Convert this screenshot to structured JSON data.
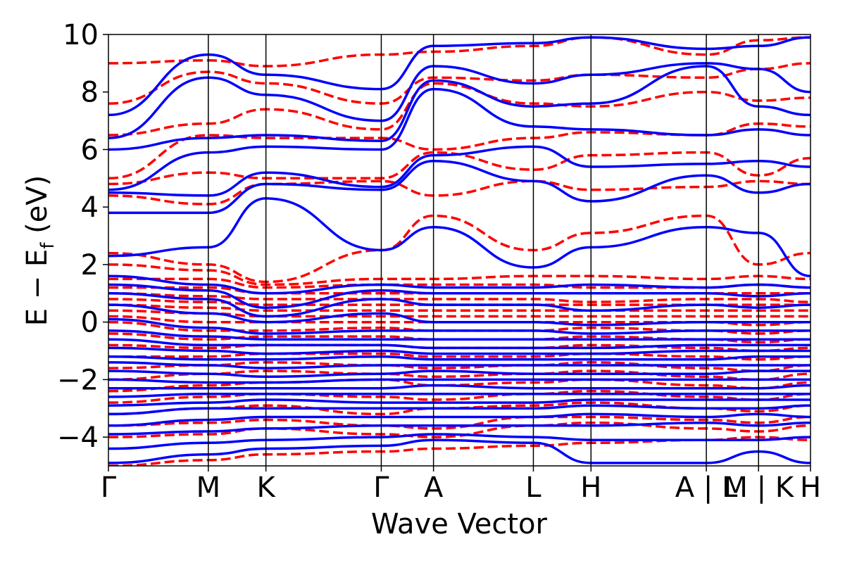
{
  "chart_data": {
    "type": "line",
    "title": "",
    "xlabel": "Wave Vector",
    "ylabel": "E − E_f (eV)",
    "ylabel_parts": {
      "main": "E − E",
      "sub": "f",
      "unit": " (eV)"
    },
    "ylim": [
      -5,
      10
    ],
    "yticks": [
      -4,
      -2,
      0,
      2,
      4,
      6,
      8,
      10
    ],
    "ytick_labels": [
      "−4",
      "−2",
      "0",
      "2",
      "4",
      "6",
      "8",
      "10"
    ],
    "k_path": {
      "labels": [
        "Γ",
        "M",
        "K",
        "Γ",
        "A",
        "L",
        "H",
        "A | L",
        "M | K",
        "H"
      ],
      "positions": [
        0,
        1.0,
        1.577,
        2.732,
        3.255,
        4.255,
        4.832,
        5.987,
        6.51,
        7.03
      ]
    },
    "grid": false,
    "legend": null,
    "series": [
      {
        "style": "dashed",
        "color": "#ff0000",
        "bands": [
          [
            -5.0,
            -4.8,
            -4.6,
            -4.5,
            -4.4,
            -4.3,
            -4.2,
            -4.1,
            -4.0,
            -4.1
          ],
          [
            -4.0,
            -3.9,
            -3.7,
            -3.9,
            -4.0,
            -3.6,
            -3.5,
            -3.7,
            -3.8,
            -3.6
          ],
          [
            -3.6,
            -3.5,
            -3.4,
            -3.6,
            -3.7,
            -3.3,
            -3.3,
            -3.4,
            -3.5,
            -3.3
          ],
          [
            -3.2,
            -3.0,
            -2.9,
            -3.2,
            -3.0,
            -2.9,
            -2.8,
            -3.0,
            -3.1,
            -2.9
          ],
          [
            -2.8,
            -2.6,
            -2.5,
            -2.6,
            -2.7,
            -2.5,
            -2.4,
            -2.6,
            -2.7,
            -2.5
          ],
          [
            -2.4,
            -2.2,
            -2.1,
            -2.0,
            -2.2,
            -2.1,
            -2.0,
            -2.2,
            -2.3,
            -2.1
          ],
          [
            -2.0,
            -1.8,
            -1.7,
            -1.8,
            -1.9,
            -1.8,
            -1.7,
            -1.9,
            -2.0,
            -1.8
          ],
          [
            -1.6,
            -1.5,
            -1.4,
            -1.5,
            -1.6,
            -1.5,
            -1.4,
            -1.6,
            -1.7,
            -1.5
          ],
          [
            -1.2,
            -1.2,
            -1.1,
            -1.1,
            -1.2,
            -1.2,
            -1.1,
            -1.2,
            -1.3,
            -1.2
          ],
          [
            -0.8,
            -0.9,
            -0.8,
            -0.8,
            -0.9,
            -0.9,
            -0.8,
            -0.9,
            -1.0,
            -0.9
          ],
          [
            -0.4,
            -0.6,
            -0.5,
            -0.5,
            -0.6,
            -0.6,
            -0.5,
            -0.6,
            -0.7,
            -0.6
          ],
          [
            0.0,
            -0.3,
            -0.3,
            -0.2,
            -0.3,
            -0.3,
            -0.2,
            -0.3,
            -0.4,
            -0.3
          ],
          [
            0.2,
            0.0,
            0.0,
            0.0,
            0.0,
            0.0,
            0.0,
            0.0,
            -0.1,
            0.0
          ],
          [
            0.4,
            0.3,
            0.2,
            0.2,
            0.2,
            0.2,
            0.2,
            0.2,
            0.2,
            0.2
          ],
          [
            0.6,
            0.5,
            0.4,
            0.4,
            0.4,
            0.4,
            0.4,
            0.4,
            0.4,
            0.4
          ],
          [
            0.8,
            0.7,
            0.6,
            0.6,
            0.6,
            0.6,
            0.6,
            0.6,
            0.6,
            0.6
          ],
          [
            1.0,
            0.9,
            0.8,
            0.8,
            0.8,
            0.8,
            0.7,
            0.8,
            0.8,
            0.7
          ],
          [
            1.2,
            1.2,
            1.0,
            1.0,
            1.0,
            1.0,
            1.0,
            1.0,
            1.0,
            1.0
          ],
          [
            1.5,
            1.5,
            1.2,
            1.3,
            1.3,
            1.3,
            1.2,
            1.2,
            1.3,
            1.2
          ],
          [
            2.0,
            1.8,
            1.3,
            1.5,
            1.5,
            1.6,
            1.6,
            1.5,
            1.6,
            1.5
          ],
          [
            2.4,
            2.0,
            1.4,
            2.5,
            3.7,
            2.5,
            3.1,
            3.7,
            2.0,
            2.4
          ],
          [
            4.4,
            4.1,
            4.8,
            4.9,
            4.4,
            4.9,
            4.6,
            4.7,
            4.9,
            4.8
          ],
          [
            4.8,
            5.2,
            5.0,
            5.0,
            5.9,
            5.3,
            5.8,
            5.9,
            5.1,
            5.7
          ],
          [
            5.0,
            6.5,
            6.4,
            6.4,
            6.0,
            6.4,
            6.6,
            6.5,
            6.9,
            6.8
          ],
          [
            6.5,
            6.9,
            7.4,
            6.7,
            8.3,
            7.6,
            7.5,
            8.0,
            7.7,
            7.8
          ],
          [
            7.6,
            8.7,
            8.3,
            7.6,
            8.5,
            8.4,
            8.6,
            8.5,
            8.8,
            9.0
          ],
          [
            9.0,
            9.1,
            8.9,
            9.3,
            9.4,
            9.6,
            9.9,
            9.3,
            9.8,
            9.9
          ]
        ]
      },
      {
        "style": "solid",
        "color": "#0000ff",
        "bands": [
          [
            -4.9,
            -4.6,
            -4.4,
            -4.3,
            -4.1,
            -4.2,
            -4.9,
            -4.9,
            -4.5,
            -4.9
          ],
          [
            -4.4,
            -4.2,
            -4.1,
            -4.0,
            -3.9,
            -4.0,
            -4.1,
            -4.1,
            -4.1,
            -4.0
          ],
          [
            -3.9,
            -3.8,
            -3.7,
            -3.6,
            -3.6,
            -3.6,
            -3.6,
            -3.5,
            -3.6,
            -3.5
          ],
          [
            -3.6,
            -3.4,
            -3.3,
            -3.3,
            -3.3,
            -3.3,
            -3.2,
            -3.3,
            -3.2,
            -3.3
          ],
          [
            -3.2,
            -3.0,
            -3.0,
            -3.0,
            -3.0,
            -3.0,
            -2.9,
            -3.0,
            -3.0,
            -2.9
          ],
          [
            -2.9,
            -2.8,
            -2.7,
            -2.8,
            -2.8,
            -2.8,
            -2.7,
            -2.7,
            -2.7,
            -2.7
          ],
          [
            -2.6,
            -2.5,
            -2.5,
            -2.5,
            -2.5,
            -2.5,
            -2.5,
            -2.5,
            -2.5,
            -2.5
          ],
          [
            -2.3,
            -2.3,
            -2.3,
            -2.3,
            -2.2,
            -2.3,
            -2.3,
            -2.3,
            -2.3,
            -2.2
          ],
          [
            -2.0,
            -2.1,
            -2.1,
            -2.0,
            -2.0,
            -2.0,
            -2.0,
            -2.0,
            -2.0,
            -2.0
          ],
          [
            -1.7,
            -1.8,
            -1.9,
            -1.8,
            -1.7,
            -1.8,
            -1.8,
            -1.8,
            -1.7,
            -1.7
          ],
          [
            -1.4,
            -1.5,
            -1.6,
            -1.5,
            -1.5,
            -1.5,
            -1.5,
            -1.5,
            -1.5,
            -1.5
          ],
          [
            -1.2,
            -1.3,
            -1.3,
            -1.2,
            -1.3,
            -1.3,
            -1.3,
            -1.3,
            -1.2,
            -1.2
          ],
          [
            -0.9,
            -1.0,
            -1.1,
            -1.0,
            -1.1,
            -1.1,
            -1.1,
            -1.0,
            -1.0,
            -1.0
          ],
          [
            -0.6,
            -0.8,
            -0.8,
            -0.8,
            -0.9,
            -0.9,
            -0.9,
            -0.8,
            -0.8,
            -0.8
          ],
          [
            -0.3,
            -0.5,
            -0.6,
            -0.6,
            -0.6,
            -0.6,
            -0.6,
            -0.6,
            -0.6,
            -0.6
          ],
          [
            0.1,
            -0.2,
            -0.4,
            -0.3,
            -0.3,
            -0.3,
            -0.4,
            -0.3,
            -0.3,
            -0.3
          ],
          [
            0.6,
            0.3,
            0.0,
            0.3,
            0.0,
            0.0,
            -0.1,
            0.0,
            0.0,
            0.0
          ],
          [
            1.0,
            0.8,
            0.2,
            0.8,
            0.6,
            0.6,
            0.4,
            0.6,
            0.5,
            0.6
          ],
          [
            1.3,
            1.1,
            0.5,
            1.1,
            1.0,
            1.0,
            1.0,
            1.0,
            0.9,
            1.0
          ],
          [
            1.6,
            1.3,
            1.0,
            1.3,
            1.2,
            1.2,
            1.3,
            1.2,
            1.3,
            1.2
          ],
          [
            2.3,
            2.6,
            4.3,
            2.5,
            3.3,
            1.9,
            2.6,
            3.3,
            3.1,
            1.6
          ],
          [
            3.8,
            3.8,
            4.8,
            4.6,
            5.6,
            4.9,
            4.2,
            5.1,
            4.5,
            4.8
          ],
          [
            4.5,
            4.4,
            5.2,
            4.7,
            5.8,
            6.1,
            5.4,
            5.5,
            5.6,
            5.4
          ],
          [
            4.6,
            5.9,
            6.1,
            6.0,
            8.1,
            6.8,
            6.7,
            6.5,
            6.7,
            6.5
          ],
          [
            6.0,
            6.4,
            6.5,
            6.3,
            8.4,
            7.5,
            7.6,
            8.9,
            7.5,
            7.2
          ],
          [
            6.4,
            8.5,
            7.9,
            7.0,
            8.9,
            8.3,
            8.6,
            9.0,
            8.8,
            8.0
          ],
          [
            7.2,
            9.3,
            8.6,
            8.1,
            9.6,
            9.7,
            9.9,
            9.5,
            9.6,
            9.9
          ]
        ]
      }
    ]
  }
}
